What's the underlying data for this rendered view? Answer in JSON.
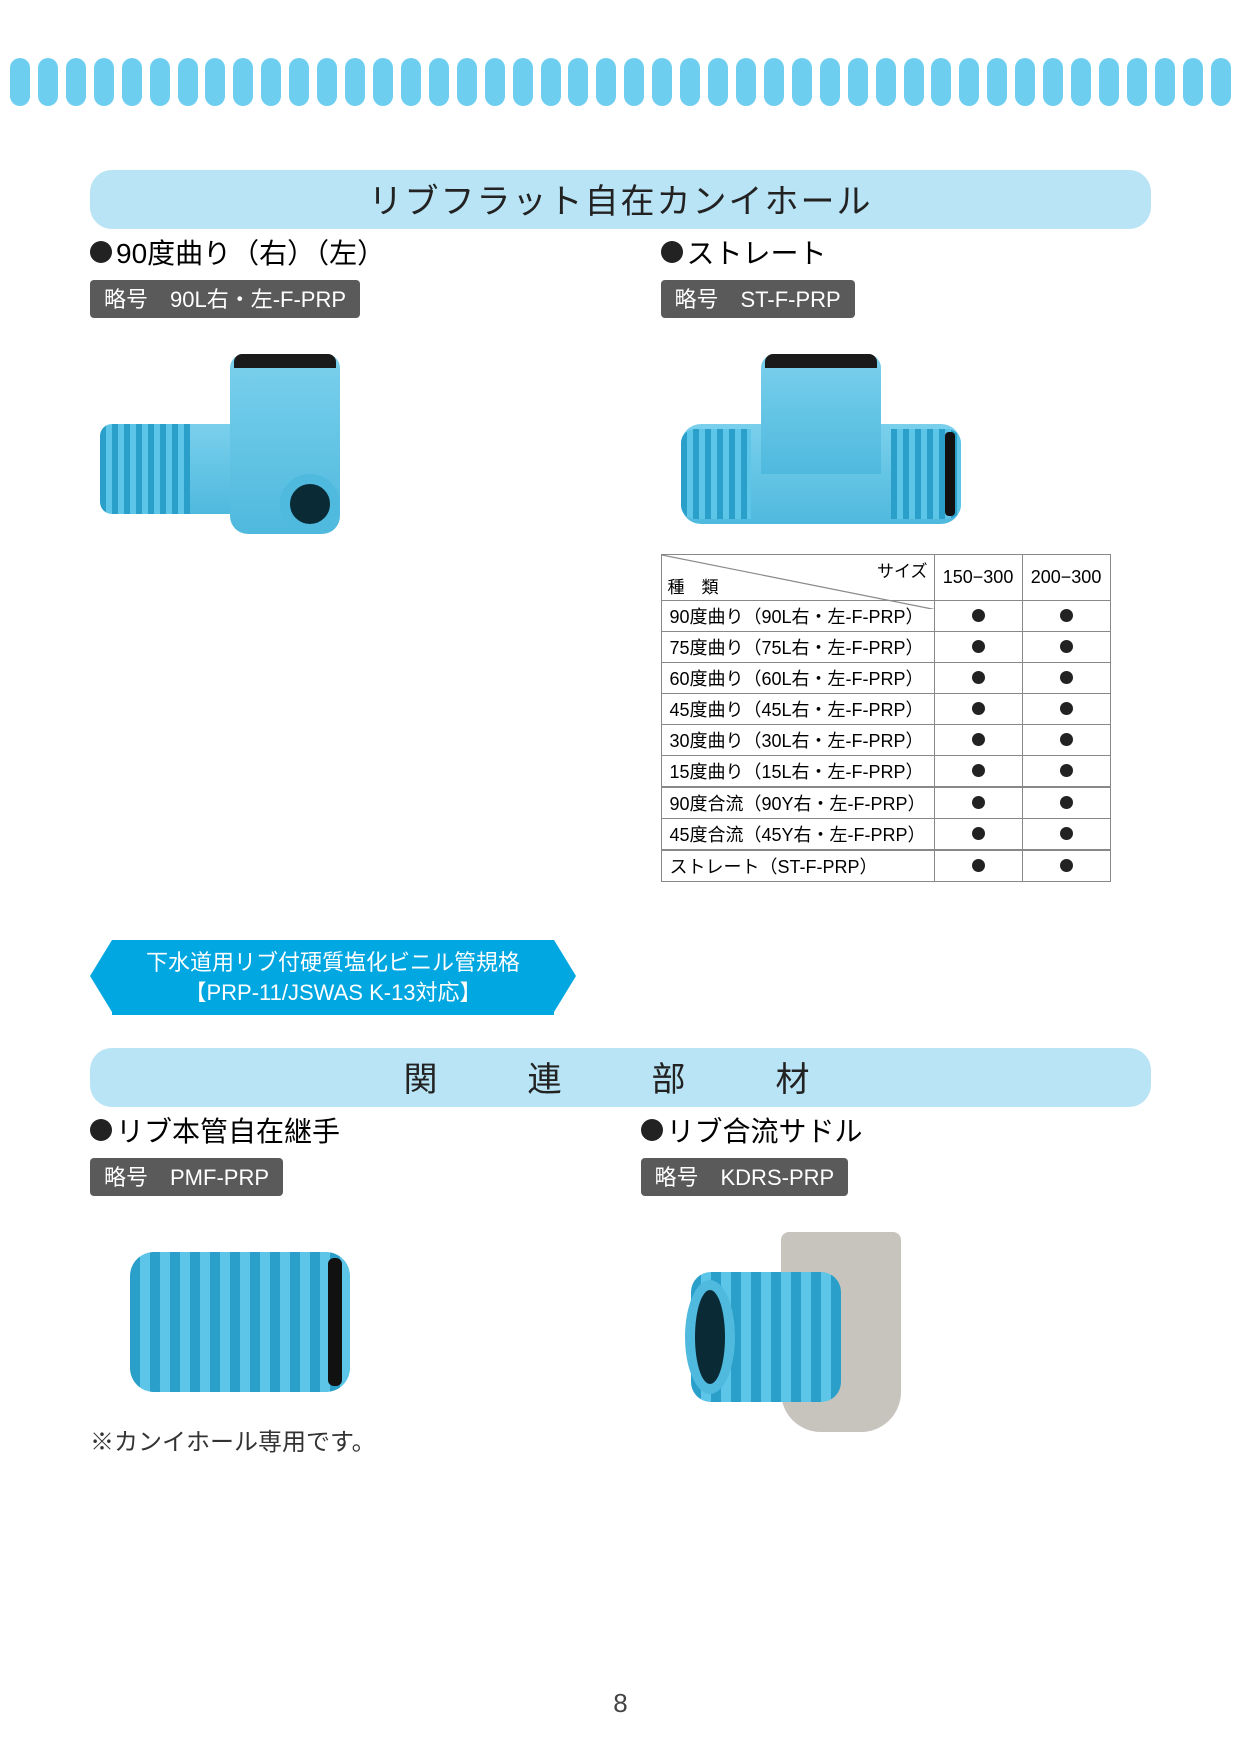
{
  "colors": {
    "accent": "#6ecef0",
    "accent_dark": "#00a7e1",
    "header_bg": "#b9e4f5",
    "tag_bg": "#5a5a5a",
    "pipe": "#4fb9de",
    "pipe_light": "#7ad0ec",
    "text": "#222222",
    "dot": "#222222",
    "table_border": "#888888"
  },
  "top_border": {
    "pill_count": 44
  },
  "section1": {
    "title": "リブフラット自在カンイホール",
    "left": {
      "subtitle": "90度曲り（右）（左）",
      "code": "略号　90L右・左-F-PRP"
    },
    "right": {
      "subtitle": "ストレート",
      "code": "略号　ST-F-PRP"
    },
    "table": {
      "header_type": "種　類",
      "header_size": "サイズ",
      "size_cols": [
        "150−300",
        "200−300"
      ],
      "rows": [
        {
          "label": "90度曲り（90L右・左-F-PRP）",
          "marks": [
            true,
            true
          ]
        },
        {
          "label": "75度曲り（75L右・左-F-PRP）",
          "marks": [
            true,
            true
          ]
        },
        {
          "label": "60度曲り（60L右・左-F-PRP）",
          "marks": [
            true,
            true
          ]
        },
        {
          "label": "45度曲り（45L右・左-F-PRP）",
          "marks": [
            true,
            true
          ]
        },
        {
          "label": "30度曲り（30L右・左-F-PRP）",
          "marks": [
            true,
            true
          ]
        },
        {
          "label": "15度曲り（15L右・左-F-PRP）",
          "marks": [
            true,
            true
          ]
        },
        {
          "label": "90度合流（90Y右・左-F-PRP）",
          "marks": [
            true,
            true
          ]
        },
        {
          "label": "45度合流（45Y右・左-F-PRP）",
          "marks": [
            true,
            true
          ]
        },
        {
          "label": "ストレート（ST-F-PRP）",
          "marks": [
            true,
            true
          ]
        }
      ],
      "row_group_breaks": [
        6,
        8
      ]
    }
  },
  "banner": {
    "line1": "下水道用リブ付硬質塩化ビニル管規格",
    "line2": "【PRP-11/JSWAS K-13対応】"
  },
  "section2": {
    "title": "関　連　部　材",
    "left": {
      "subtitle": "リブ本管自在継手",
      "code": "略号　PMF-PRP",
      "note": "※カンイホール専用です。"
    },
    "right": {
      "subtitle": "リブ合流サドル",
      "code": "略号　KDRS-PRP"
    }
  },
  "page_number": "8"
}
